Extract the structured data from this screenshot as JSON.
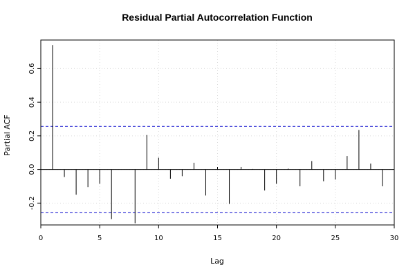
{
  "chart_data": {
    "type": "bar",
    "title": "Residual Partial Autocorrelation Function",
    "xlabel": "Lag",
    "ylabel": "Partial ACF",
    "xlim": [
      0,
      30
    ],
    "ylim": [
      -0.33,
      0.77
    ],
    "x_ticks": [
      "0",
      "5",
      "10",
      "15",
      "20",
      "25",
      "30"
    ],
    "x_tick_values": [
      0,
      5,
      10,
      15,
      20,
      25,
      30
    ],
    "y_ticks": [
      "-0.2",
      "0.0",
      "0.2",
      "0.4",
      "0.6"
    ],
    "y_tick_values": [
      -0.2,
      0.0,
      0.2,
      0.4,
      0.6
    ],
    "grid": true,
    "confidence_bounds": [
      0.256,
      -0.256
    ],
    "colors": {
      "bars": "#000000",
      "bounds": "#0000cc",
      "grid": "#d9d9d9",
      "zero_line": "#000000"
    },
    "lags": [
      1,
      2,
      3,
      4,
      5,
      6,
      7,
      8,
      9,
      10,
      11,
      12,
      13,
      14,
      15,
      16,
      17,
      18,
      19,
      20,
      21,
      22,
      23,
      24,
      25,
      26,
      27,
      28,
      29
    ],
    "values": [
      0.74,
      -0.045,
      -0.15,
      -0.105,
      -0.085,
      -0.295,
      0.0,
      -0.32,
      0.205,
      0.07,
      -0.055,
      -0.04,
      0.04,
      -0.155,
      0.015,
      -0.205,
      0.015,
      0.003,
      -0.125,
      -0.085,
      0.005,
      -0.1,
      0.05,
      -0.07,
      -0.06,
      0.08,
      0.235,
      0.035,
      -0.1
    ]
  }
}
